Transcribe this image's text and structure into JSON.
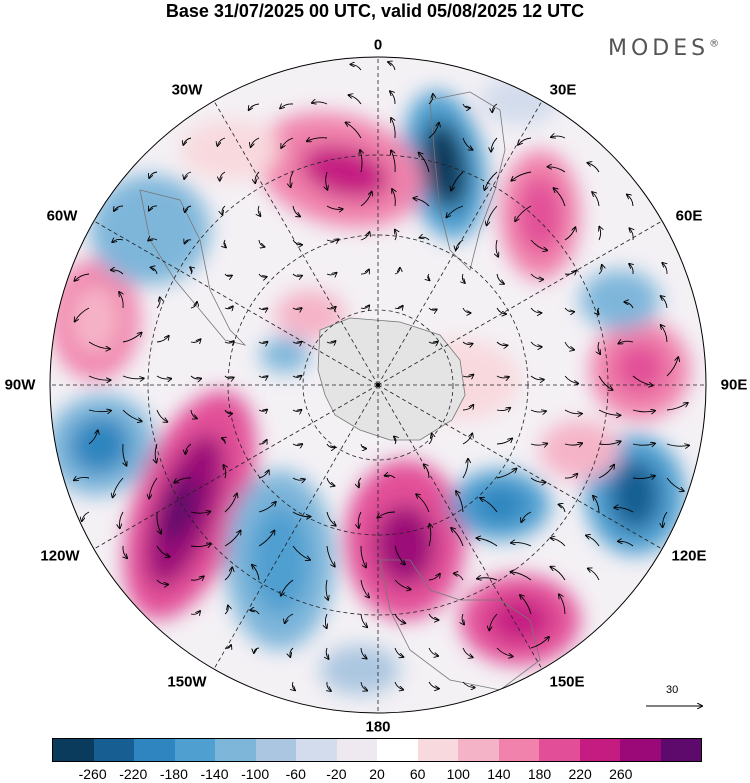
{
  "title": "Base 31/07/2025 00 UTC, valid 05/08/2025 12 UTC",
  "brand": "MODES",
  "brand_mark": "®",
  "longitudes": {
    "n0": "0",
    "e30": "30E",
    "e60": "60E",
    "e90": "90E",
    "e120": "120E",
    "e150": "150E",
    "s180": "180",
    "w150": "150W",
    "w120": "120W",
    "w90": "90W",
    "w60": "60W",
    "w30": "30W"
  },
  "colorbar": {
    "colors": [
      "#0b3b5c",
      "#175f93",
      "#2e85bf",
      "#4f9fd0",
      "#7eb6da",
      "#abc6e0",
      "#d3dcec",
      "#eee9f1",
      "#ffffff",
      "#f8d9de",
      "#f5b3c7",
      "#f082ac",
      "#e24f98",
      "#c51c82",
      "#9b0978",
      "#5e0a6c"
    ],
    "ticks": [
      "-260",
      "-220",
      "-180",
      "-140",
      "-100",
      "-60",
      "-20",
      "20",
      "60",
      "100",
      "140",
      "180",
      "220",
      "260"
    ]
  },
  "reference_vector": "30"
}
